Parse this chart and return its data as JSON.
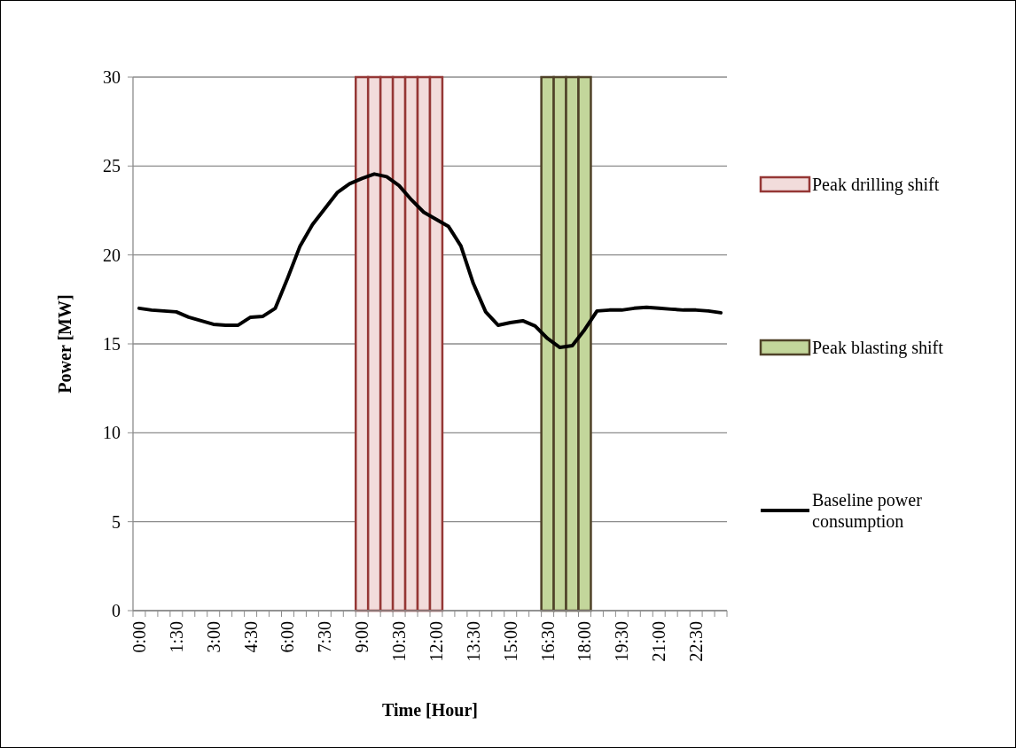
{
  "chart_data": {
    "type": "bar",
    "xlabel": "Time [Hour]",
    "ylabel": "Power [MW]",
    "categories": [
      "0:00",
      null,
      null,
      "1:30",
      null,
      null,
      "3:00",
      null,
      null,
      "4:30",
      null,
      null,
      "6:00",
      null,
      null,
      "7:30",
      null,
      null,
      "9:00",
      null,
      null,
      "10:30",
      null,
      null,
      "12:00",
      null,
      null,
      "13:30",
      null,
      null,
      "15:00",
      null,
      null,
      "16:30",
      null,
      null,
      "18:00",
      null,
      null,
      "19:30",
      null,
      null,
      "21:00",
      null,
      null,
      "22:30",
      null,
      null
    ],
    "ylim": [
      0,
      30
    ],
    "yticks": [
      0,
      5,
      10,
      15,
      20,
      25,
      30
    ],
    "grid": "y",
    "legend": "right",
    "series": [
      {
        "name": "Peak drilling shift",
        "color": "#f2dcdb",
        "values": [
          null,
          null,
          null,
          null,
          null,
          null,
          null,
          null,
          null,
          null,
          null,
          null,
          null,
          null,
          null,
          null,
          null,
          null,
          30,
          30,
          30,
          30,
          30,
          30,
          30,
          null,
          null,
          null,
          null,
          null,
          null,
          null,
          null,
          null,
          null,
          null,
          null,
          null,
          null,
          null,
          null,
          null,
          null,
          null,
          null,
          null,
          null,
          null
        ]
      },
      {
        "name": "Peak blasting shift",
        "color": "#c3d69b",
        "values": [
          null,
          null,
          null,
          null,
          null,
          null,
          null,
          null,
          null,
          null,
          null,
          null,
          null,
          null,
          null,
          null,
          null,
          null,
          null,
          null,
          null,
          null,
          null,
          null,
          null,
          null,
          null,
          null,
          null,
          null,
          null,
          null,
          null,
          30,
          30,
          30,
          30,
          null,
          null,
          null,
          null,
          null,
          null,
          null,
          null,
          null,
          null,
          null
        ]
      },
      {
        "name": "Baseline power consumption",
        "type": "line",
        "color": "#000000",
        "values": [
          17.0,
          16.9,
          16.85,
          16.8,
          16.5,
          16.3,
          16.1,
          16.05,
          16.05,
          16.5,
          16.55,
          17.0,
          18.7,
          20.5,
          21.7,
          22.6,
          23.5,
          24.0,
          24.3,
          24.55,
          24.4,
          23.9,
          23.1,
          22.4,
          22.0,
          21.6,
          20.5,
          18.4,
          16.8,
          16.05,
          16.2,
          16.3,
          16.0,
          15.3,
          14.8,
          14.9,
          15.8,
          16.85,
          16.9,
          16.9,
          17.0,
          17.05,
          17.0,
          16.95,
          16.9,
          16.9,
          16.85,
          16.75
        ]
      }
    ]
  }
}
